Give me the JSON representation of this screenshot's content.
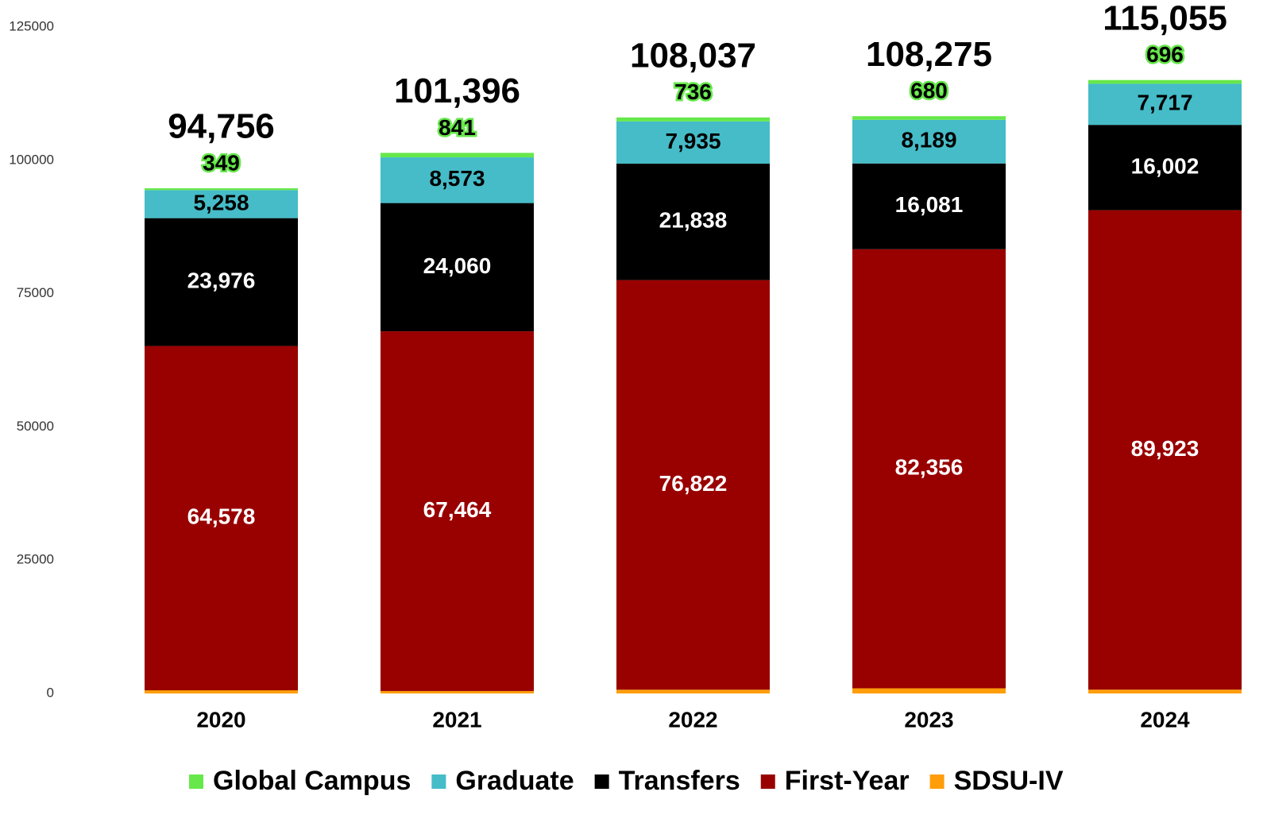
{
  "chart_data": {
    "type": "stacked_bar",
    "categories": [
      "2020",
      "2021",
      "2022",
      "2023",
      "2024"
    ],
    "series": [
      {
        "name": "Global Campus",
        "color": "#66e84b",
        "values": [
          349,
          841,
          736,
          680,
          696
        ]
      },
      {
        "name": "Graduate",
        "color": "#45bcc8",
        "values": [
          5258,
          8573,
          7935,
          8189,
          7717
        ],
        "value_labels": [
          "5,258",
          "8,573",
          "7,935",
          "8,189",
          "7,717"
        ]
      },
      {
        "name": "Transfers",
        "color": "#000000",
        "values": [
          23976,
          24060,
          21838,
          16081,
          16002
        ],
        "value_labels": [
          "23,976",
          "24,060",
          "21,838",
          "16,081",
          "16,002"
        ]
      },
      {
        "name": "First-Year",
        "color": "#990000",
        "values": [
          64578,
          67464,
          76822,
          82356,
          89923
        ],
        "value_labels": [
          "64,578",
          "67,464",
          "76,822",
          "82,356",
          "89,923"
        ]
      },
      {
        "name": "SDSU-IV",
        "color": "#ff9e0a",
        "values": [
          595,
          458,
          706,
          969,
          717
        ]
      }
    ],
    "totals": {
      "values": [
        94756,
        101396,
        108037,
        108275,
        115055
      ],
      "value_labels": [
        "94,756",
        "101,396",
        "108,037",
        "108,275",
        "115,055"
      ]
    },
    "ylim": [
      0,
      125000
    ],
    "yticks": [
      0,
      25000,
      50000,
      75000,
      100000,
      125000
    ],
    "grid": false,
    "legend": "bottom"
  }
}
